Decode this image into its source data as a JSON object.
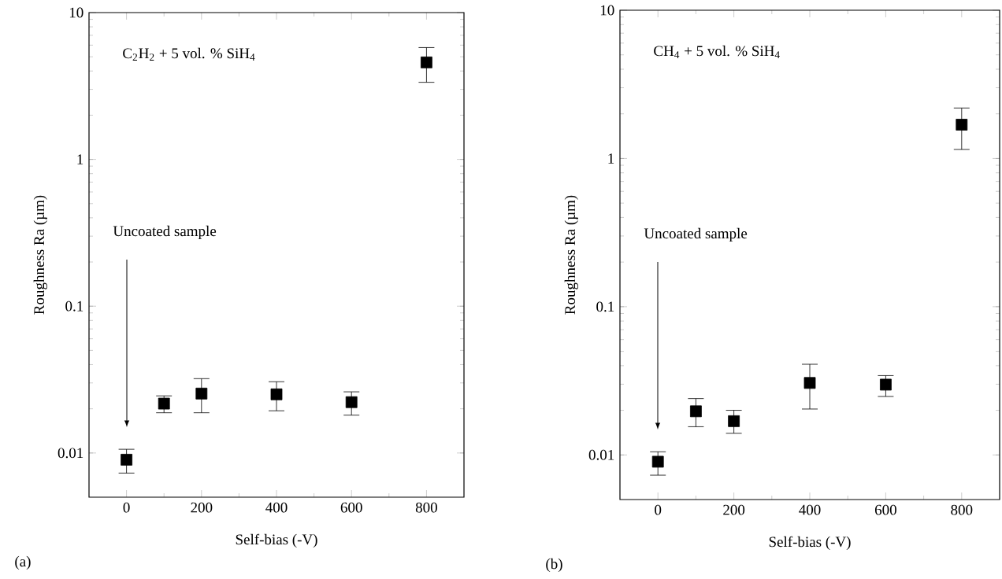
{
  "chart_data": [
    {
      "type": "scatter",
      "xlabel": "Self-bias (-V)",
      "ylabel": "Roughness Ra (µm)",
      "log": "y",
      "marker": "square",
      "x": [
        0,
        100,
        200,
        400,
        600,
        800
      ],
      "series": [
        {
          "color": "#000000",
          "values": [
            0.009,
            0.0217,
            0.0254,
            0.0251,
            0.0222,
            4.58
          ],
          "errors": [
            [
              0.0073,
              0.0106
            ],
            [
              0.0188,
              0.0245
            ],
            [
              0.0188,
              0.0321
            ],
            [
              0.0194,
              0.0306
            ],
            [
              0.0181,
              0.0261
            ],
            [
              3.35,
              5.78
            ]
          ]
        }
      ],
      "xlim": [
        -100,
        900
      ],
      "xticks": [
        0,
        200,
        400,
        600,
        800
      ],
      "ylim": [
        0.005,
        10
      ],
      "yticks": [
        0.01,
        0.1,
        1,
        10
      ],
      "annotations": [
        "C$_{2}$H$_{2}$ + 5 vol. % SiH$_{4}$",
        "Uncoated sample",
        "(a)"
      ]
    },
    {
      "type": "scatter",
      "xlabel": "Self-bias (-V)",
      "ylabel": "Roughness Ra (µm)",
      "log": "y",
      "marker": "square",
      "x": [
        0,
        100,
        200,
        400,
        600,
        800
      ],
      "series": [
        {
          "color": "#000000",
          "values": [
            0.009,
            0.0197,
            0.0169,
            0.0306,
            0.0298,
            1.69
          ],
          "errors": [
            [
              0.0073,
              0.0105
            ],
            [
              0.0155,
              0.024
            ],
            [
              0.014,
              0.02
            ],
            [
              0.0204,
              0.0409
            ],
            [
              0.0248,
              0.0343
            ],
            [
              1.15,
              2.19
            ]
          ]
        }
      ],
      "xlim": [
        -100,
        900
      ],
      "xticks": [
        0,
        200,
        400,
        600,
        800
      ],
      "ylim": [
        0.005,
        10
      ],
      "yticks": [
        0.01,
        0.1,
        1,
        10
      ],
      "annotations": [
        "CH$_{4}$ + 5 vol. % SiH$_{4}$",
        "Uncoated sample",
        "(b)"
      ]
    }
  ]
}
